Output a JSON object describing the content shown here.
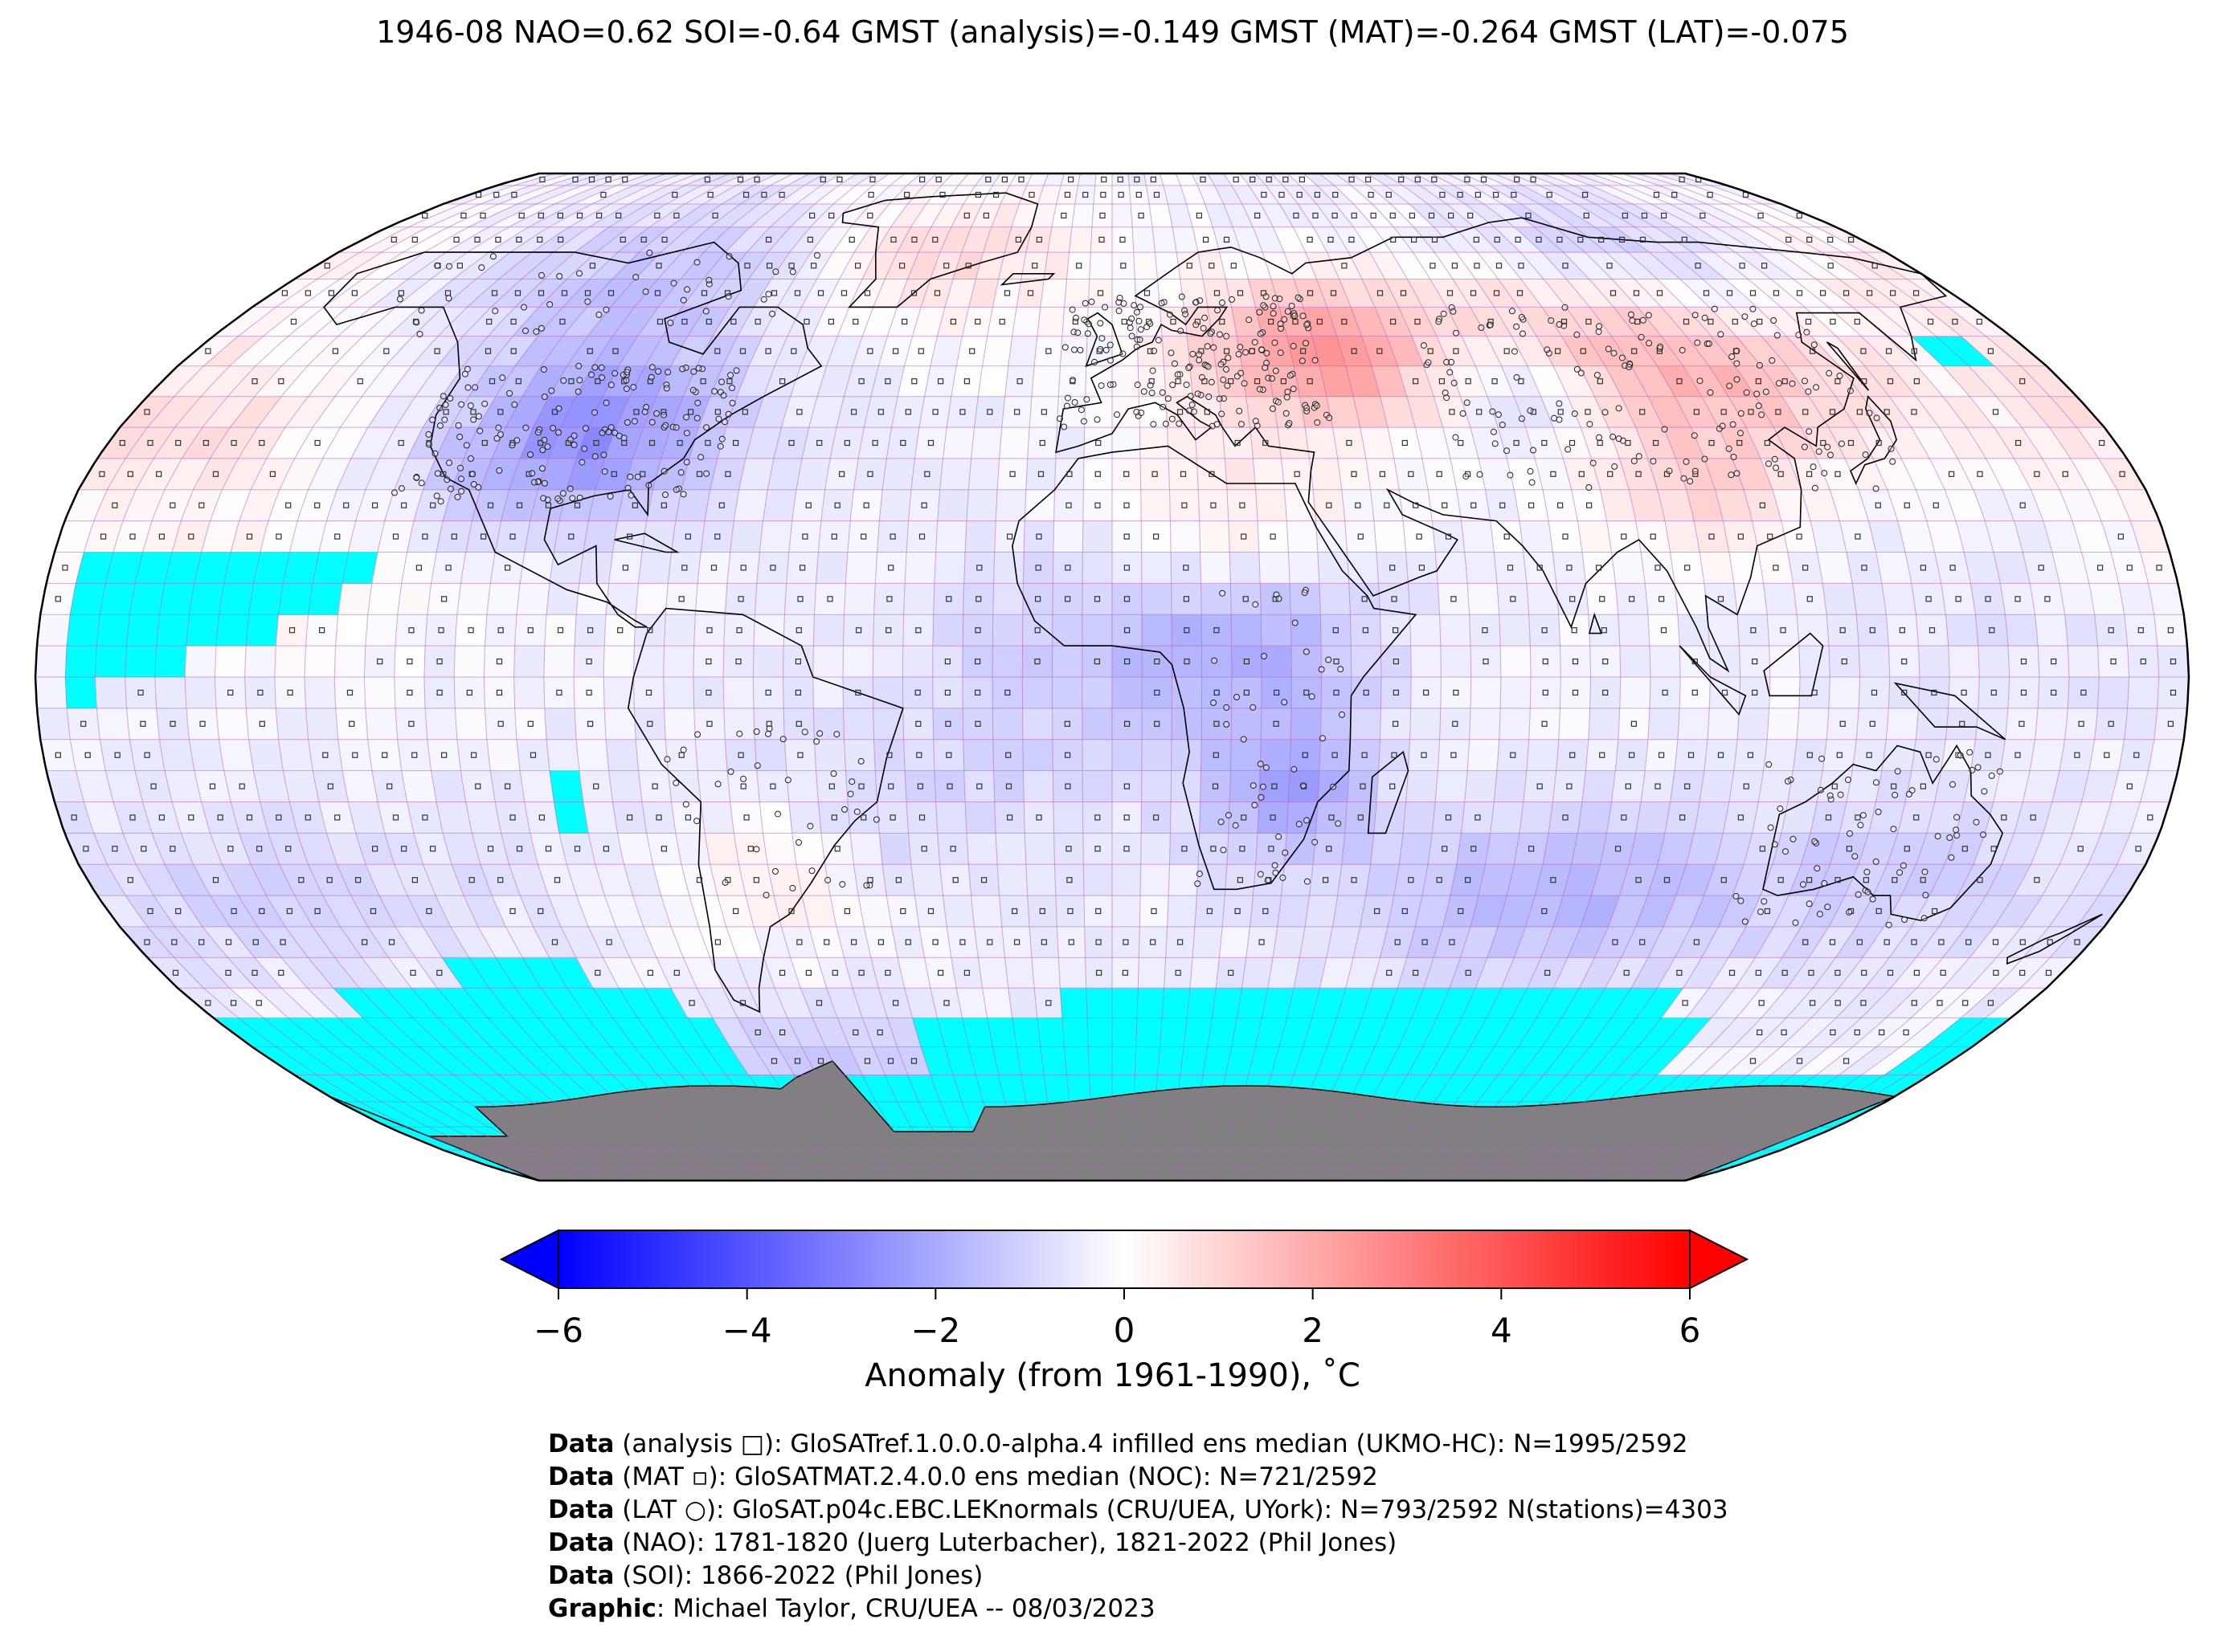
{
  "title": "1946-08 NAO=0.62 SOI=-0.64 GMST (analysis)=-0.149 GMST (MAT)=-0.264 GMST (LAT)=-0.075",
  "colorbar": {
    "label": "Anomaly (from 1961-1990), ˚C",
    "ticks": [
      "−6",
      "−4",
      "−2",
      "0",
      "2",
      "4",
      "6"
    ],
    "tick_values": [
      -6,
      -4,
      -2,
      0,
      2,
      4,
      6
    ],
    "vmin": -6,
    "vmax": 6,
    "colors": {
      "low": "#0000ff",
      "mid": "#ffffff",
      "high": "#ff0000"
    }
  },
  "map": {
    "projection": "Robinson",
    "grid": "5x5 degree",
    "nodata_color": "#00ffff",
    "land_mask_color": "#808080",
    "gridline_color": "#b060c0"
  },
  "credits": [
    {
      "label": "Data",
      "text": " (analysis □): GloSATref.1.0.0.0-alpha.4 infilled ens median (UKMO-HC): N=1995/2592"
    },
    {
      "label": "Data",
      "text": " (MAT ▫): GloSATMAT.2.4.0.0 ens median (NOC): N=721/2592"
    },
    {
      "label": "Data",
      "text": " (LAT ○): GloSAT.p04c.EBC.LEKnormals (CRU/UEA, UYork): N=793/2592 N(stations)=4303"
    },
    {
      "label": "Data",
      "text": " (NAO): 1781-1820 (Juerg Luterbacher), 1821-2022 (Phil Jones)"
    },
    {
      "label": "Data",
      "text": " (SOI): 1866-2022 (Phil Jones)"
    },
    {
      "label": "Graphic",
      "text": ": Michael Taylor, CRU/UEA -- 08/03/2023"
    }
  ]
}
